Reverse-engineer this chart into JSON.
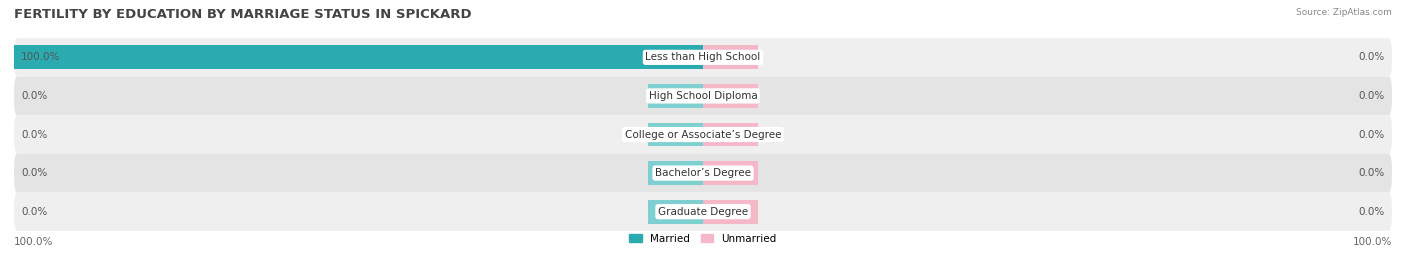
{
  "title": "FERTILITY BY EDUCATION BY MARRIAGE STATUS IN SPICKARD",
  "source": "Source: ZipAtlas.com",
  "categories": [
    "Less than High School",
    "High School Diploma",
    "College or Associate’s Degree",
    "Bachelor’s Degree",
    "Graduate Degree"
  ],
  "married_values": [
    100.0,
    0.0,
    0.0,
    0.0,
    0.0
  ],
  "unmarried_values": [
    0.0,
    0.0,
    0.0,
    0.0,
    0.0
  ],
  "married_color_full": "#2AABB0",
  "married_color_stub": "#7ECFCF",
  "unmarried_color_full": "#F08098",
  "unmarried_color_stub": "#F4B8C8",
  "row_bg_even": "#EFEFEF",
  "row_bg_odd": "#E4E4E4",
  "label_bg_color": "#FFFFFF",
  "bar_height": 0.62,
  "max_value": 100.0,
  "stub_value": 8.0,
  "left_axis_label": "100.0%",
  "right_axis_label": "100.0%",
  "title_fontsize": 9.5,
  "label_fontsize": 7.5,
  "tick_fontsize": 7.5,
  "source_fontsize": 6.5
}
